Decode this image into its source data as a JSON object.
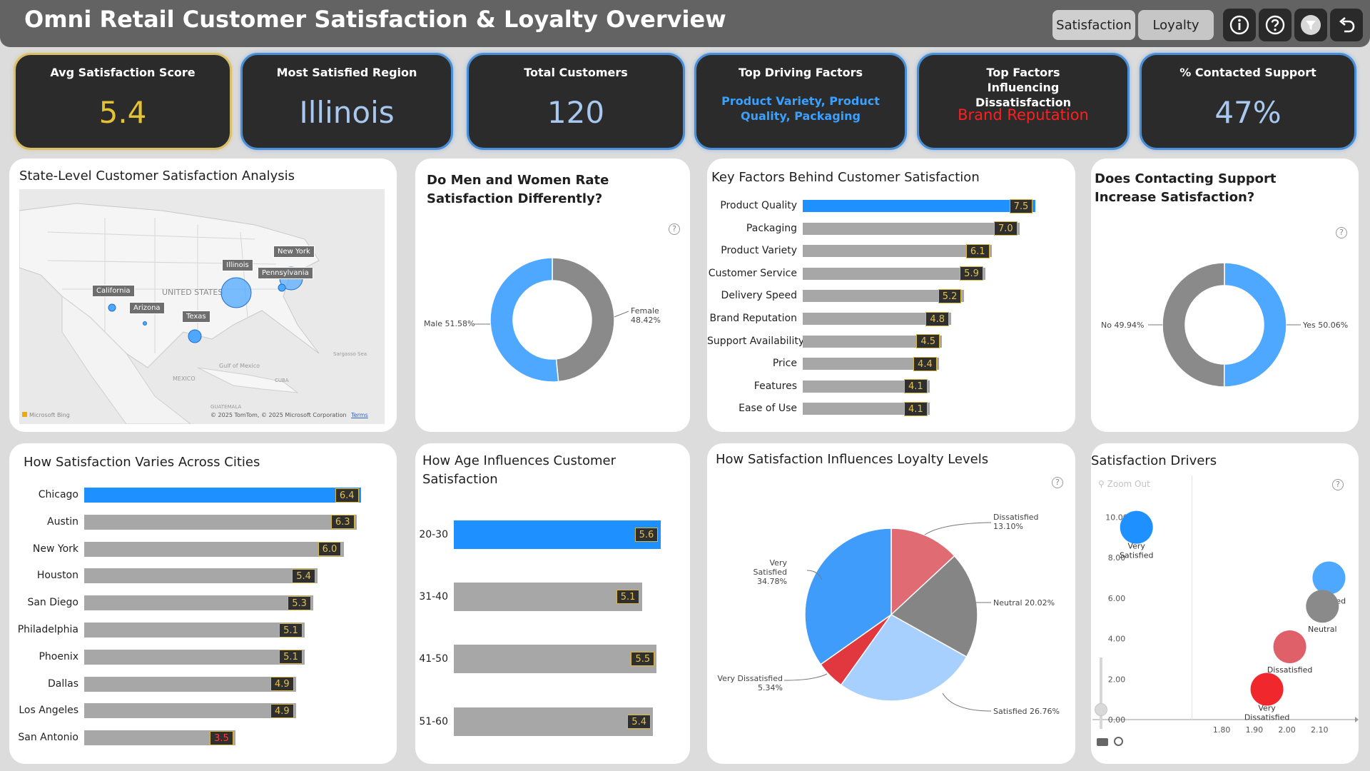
{
  "header": {
    "title": "Omni Retail Customer Satisfaction & Loyalty Overview",
    "tabs": [
      "Satisfaction",
      "Loyalty"
    ],
    "icons": [
      "info-icon",
      "help-icon",
      "filter-icon",
      "back-icon"
    ]
  },
  "kpis": [
    {
      "label": "Avg Satisfaction Score",
      "value": "5.4"
    },
    {
      "label": "Most Satisfied Region",
      "value": "Illinois"
    },
    {
      "label": "Total Customers",
      "value": "120"
    },
    {
      "label": "Top Driving Factors",
      "value": "Product Variety, Product Quality, Packaging"
    },
    {
      "label": "Top Factors Influencing Dissatisfaction",
      "value": "Brand Reputation"
    },
    {
      "label": "% Contacted Support",
      "value": "47%"
    }
  ],
  "map_panel": {
    "title": "State-Level Customer Satisfaction Analysis",
    "states": [
      "California",
      "Arizona",
      "Texas",
      "Illinois",
      "New York",
      "Pennsylvania"
    ],
    "country_label": "UNITED STATES",
    "mexico": "MEXICO",
    "gulf": "Gulf of Mexico",
    "sargasso": "Sargasso Sea",
    "cuba": "CUBA",
    "guatemala": "GUATEMALA",
    "bing": "Microsoft Bing",
    "copyright": "© 2025 TomTom, © 2025 Microsoft Corporation",
    "terms": "Terms"
  },
  "gender_panel": {
    "title": "Do Men and Women Rate Satisfaction Differently?",
    "male_label": "Male 51.58%",
    "female_label": "Female 48.42%"
  },
  "factors_panel": {
    "title": "Key Factors Behind Customer Satisfaction"
  },
  "support_panel": {
    "title": "Does Contacting Support Increase Satisfaction?",
    "no_label": "No 49.94%",
    "yes_label": "Yes 50.06%"
  },
  "cities_panel": {
    "title": "How Satisfaction Varies Across Cities"
  },
  "age_panel": {
    "title": "How Age Influences Customer Satisfaction"
  },
  "loyalty_panel": {
    "title": "How Satisfaction Influences Loyalty Levels",
    "labels": {
      "dissatisfied": "Dissatisfied 13.10%",
      "neutral": "Neutral 20.02%",
      "satisfied": "Satisfied 26.76%",
      "very_dissatisfied": "Very Dissatisfied 5.34%",
      "very_satisfied": "Very Satisfied 34.78%"
    }
  },
  "drivers_panel": {
    "title": "Satisfaction Drivers",
    "zoom_out": "Zoom Out"
  },
  "colors": {
    "accent": "#1e90ff",
    "bar": "#a7a7a7",
    "light_blue": "#4ea8ff",
    "grey": "#8a8a8a",
    "red": "#e0383e"
  },
  "chart_data": [
    {
      "type": "bar",
      "title": "Key Factors Behind Customer Satisfaction",
      "categories": [
        "Product Quality",
        "Packaging",
        "Product Variety",
        "Customer Service",
        "Delivery Speed",
        "Brand Reputation",
        "Support Availability",
        "Price",
        "Features",
        "Ease of Use"
      ],
      "values": [
        7.5,
        7.0,
        6.1,
        5.9,
        5.2,
        4.8,
        4.5,
        4.4,
        4.1,
        4.1
      ],
      "labels": [
        "7.5",
        "7.0",
        "6.1",
        "5.9",
        "5.2",
        "4.8",
        "4.5",
        "4.4",
        "4.1",
        "4.1"
      ],
      "orientation": "horizontal",
      "xlim": [
        0,
        7.6
      ]
    },
    {
      "type": "bar",
      "title": "How Satisfaction Varies Across Cities",
      "categories": [
        "Chicago",
        "Austin",
        "New York",
        "Houston",
        "San Diego",
        "Philadelphia",
        "Phoenix",
        "Dallas",
        "Los Angeles",
        "San Antonio"
      ],
      "values": [
        6.4,
        6.3,
        6.0,
        5.4,
        5.3,
        5.1,
        5.1,
        4.9,
        4.9,
        3.5
      ],
      "labels": [
        "6.4",
        "6.3",
        "6.0",
        "5.4",
        "5.3",
        "5.1",
        "5.1",
        "4.9",
        "4.9",
        "3.5"
      ],
      "orientation": "horizontal",
      "xlim": [
        0,
        6.6
      ]
    },
    {
      "type": "bar",
      "title": "How Age Influences Customer Satisfaction",
      "categories": [
        "20-30",
        "31-40",
        "41-50",
        "51-60"
      ],
      "values": [
        5.6,
        5.1,
        5.5,
        5.4
      ],
      "labels": [
        "5.6",
        "5.1",
        "5.5",
        "5.4"
      ],
      "orientation": "horizontal",
      "xlim": [
        0,
        5.8
      ]
    },
    {
      "type": "pie",
      "title": "Do Men and Women Rate Satisfaction Differently?",
      "donut": true,
      "categories": [
        "Female",
        "Male"
      ],
      "values": [
        48.42,
        51.58
      ]
    },
    {
      "type": "pie",
      "title": "Does Contacting Support Increase Satisfaction?",
      "donut": true,
      "categories": [
        "Yes",
        "No"
      ],
      "values": [
        50.06,
        49.94
      ]
    },
    {
      "type": "pie",
      "title": "How Satisfaction Influences Loyalty Levels",
      "categories": [
        "Dissatisfied",
        "Neutral",
        "Satisfied",
        "Very Dissatisfied",
        "Very Satisfied"
      ],
      "values": [
        13.1,
        20.02,
        26.76,
        5.34,
        34.78
      ]
    },
    {
      "type": "scatter",
      "title": "Satisfaction Drivers",
      "points": [
        {
          "name": "Very Satisfied",
          "x": 1.53,
          "y": 9.5
        },
        {
          "name": "Satisfied",
          "x": 2.12,
          "y": 7.0
        },
        {
          "name": "Neutral",
          "x": 2.1,
          "y": 5.6
        },
        {
          "name": "Dissatisfied",
          "x": 2.0,
          "y": 3.6
        },
        {
          "name": "Very Dissatisfied",
          "x": 1.93,
          "y": 1.5
        }
      ],
      "xticks": [
        "1.80",
        "1.90",
        "2.00",
        "2.10"
      ],
      "yticks": [
        "0.00",
        "2.00",
        "4.00",
        "6.00",
        "8.00",
        "10.00"
      ],
      "xlim": [
        1.5,
        2.2
      ],
      "ylim": [
        0,
        10.3
      ]
    },
    {
      "type": "scatter",
      "title": "State-Level Customer Satisfaction Analysis",
      "points": [
        {
          "name": "Illinois",
          "value": 6.4
        },
        {
          "name": "New York",
          "value": 6.0
        },
        {
          "name": "Pennsylvania",
          "value": 5.1
        },
        {
          "name": "Texas",
          "value": 5.1
        },
        {
          "name": "California",
          "value": 4.9
        },
        {
          "name": "Arizona",
          "value": 5.1
        }
      ]
    }
  ]
}
